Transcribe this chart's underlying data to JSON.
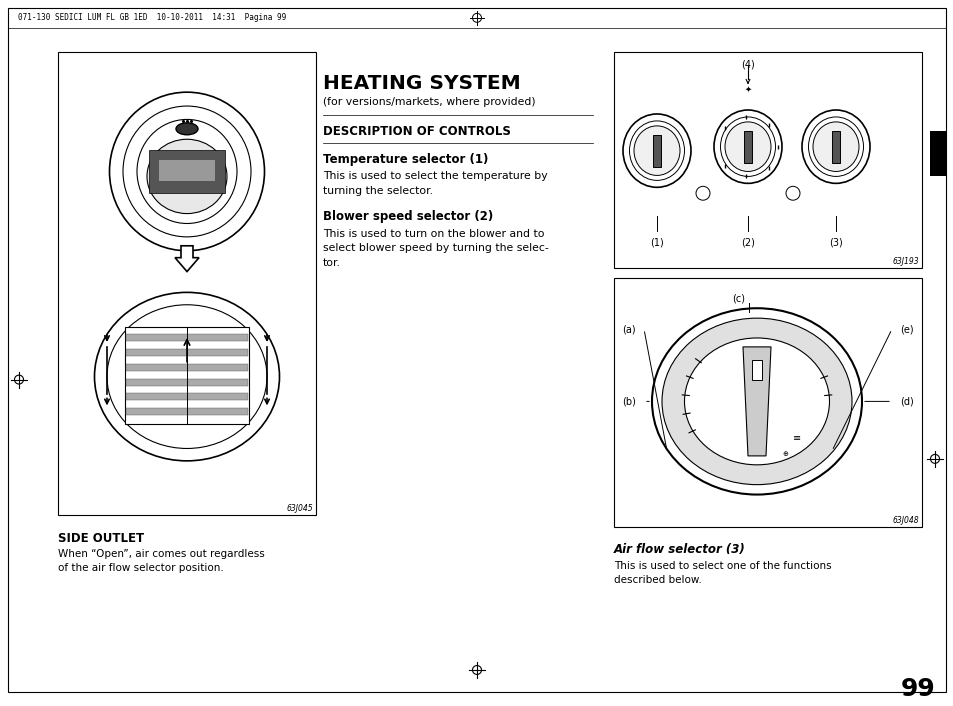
{
  "page_bg": "#ffffff",
  "header_text": "071-130 SEDICI LUM FL GB 1ED  10-10-2011  14:31  Pagina 99",
  "title": "HEATING SYSTEM",
  "subtitle": "(for versions/markets, where provided)",
  "section1": "DESCRIPTION OF CONTROLS",
  "subsection1": "Temperature selector (1)",
  "desc1": "This is used to select the temperature by\nturning the selector.",
  "subsection2": "Blower speed selector (2)",
  "desc2": "This is used to turn on the blower and to\nselect blower speed by turning the selec-\ntor.",
  "left_caption": "SIDE OUTLET",
  "left_desc": "When “Open”, air comes out regardless\nof the air flow selector position.",
  "right_caption": "Air flow selector (3)",
  "right_desc": "This is used to select one of the functions\ndescribed below.",
  "fig1_code": "63J045",
  "fig2_code": "63J193",
  "fig3_code": "63J048",
  "page_number": "99",
  "label_4": "(4)",
  "label_1": "(1)",
  "label_2": "(2)",
  "label_3": "(3)",
  "label_a": "(a)",
  "label_b": "(b)",
  "label_c": "(c)",
  "label_d": "(d)",
  "label_e": "(e)"
}
